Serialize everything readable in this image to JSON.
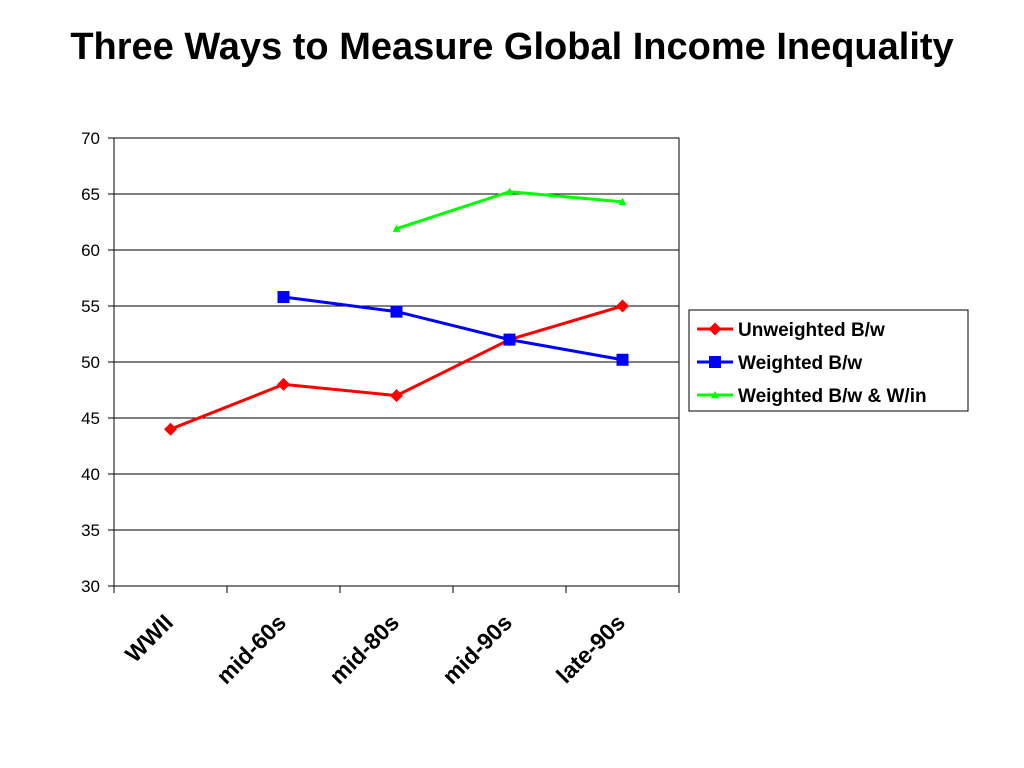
{
  "chart_data": {
    "type": "line",
    "title": "Three Ways to Measure Global Income Inequality",
    "categories": [
      "WWII",
      "mid-60s",
      "mid-80s",
      "mid-90s",
      "late-90s"
    ],
    "xlabel": "",
    "ylabel": "",
    "ylim": [
      30,
      70
    ],
    "yticks": [
      30,
      35,
      40,
      45,
      50,
      55,
      60,
      65,
      70
    ],
    "grid": true,
    "legend_position": "right",
    "series": [
      {
        "name": "Unweighted B/w",
        "color": "#ff0000",
        "marker": "diamond",
        "values": [
          44,
          48,
          47,
          52,
          55
        ]
      },
      {
        "name": "Weighted B/w",
        "color": "#0000ff",
        "marker": "square",
        "values": [
          null,
          55.8,
          54.5,
          52,
          50.2
        ]
      },
      {
        "name": "Weighted B/w & W/in",
        "color": "#00ff00",
        "marker": "triangle",
        "values": [
          null,
          null,
          61.9,
          65.2,
          64.3
        ]
      }
    ]
  }
}
